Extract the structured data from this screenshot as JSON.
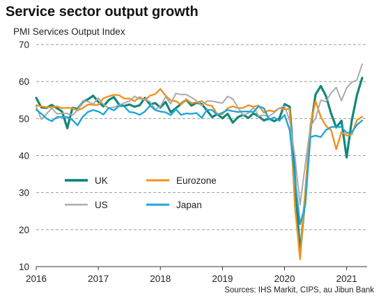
{
  "chart_data": {
    "type": "line",
    "title": "Service sector output growth",
    "ylabel": "PMI Services Output Index",
    "source": "Sources: IHS Markit, CIPS, au Jibun Bank",
    "ylim": [
      10,
      70
    ],
    "yticks": [
      10,
      20,
      30,
      40,
      50,
      60,
      70
    ],
    "xlim": [
      2016.0,
      2021.33
    ],
    "xticks": [
      {
        "value": 2016,
        "label": "2016"
      },
      {
        "value": 2017,
        "label": "2017"
      },
      {
        "value": 2018,
        "label": "2018"
      },
      {
        "value": 2019,
        "label": "2019"
      },
      {
        "value": 2020,
        "label": "2020"
      },
      {
        "value": 2021,
        "label": "2021"
      }
    ],
    "grid": "horizontal-dashed",
    "legend": "center-left",
    "series": [
      {
        "name": "UK",
        "color": "#12877a",
        "width": 3.2,
        "values": [
          55.6,
          53.0,
          52.9,
          53.7,
          52.8,
          51.9,
          47.4,
          52.9,
          52.6,
          54.5,
          55.2,
          56.2,
          54.5,
          53.3,
          55.0,
          55.8,
          53.8,
          53.4,
          53.8,
          53.2,
          53.6,
          55.6,
          53.8,
          54.2,
          53.0,
          54.5,
          51.7,
          52.8,
          54.0,
          55.1,
          53.5,
          54.3,
          53.9,
          52.2,
          50.4,
          51.2,
          50.1,
          51.3,
          48.9,
          50.4,
          51.0,
          50.2,
          51.4,
          50.6,
          49.5,
          50.0,
          49.3,
          50.0,
          53.9,
          53.2,
          34.5,
          13.4,
          29.0,
          47.1,
          56.5,
          58.8,
          56.1,
          51.4,
          47.6,
          49.4,
          39.5,
          49.5,
          56.3,
          61.0
        ]
      },
      {
        "name": "Eurozone",
        "color": "#f0921e",
        "width": 2.4,
        "values": [
          53.6,
          53.3,
          53.1,
          53.1,
          53.3,
          52.8,
          52.9,
          52.8,
          52.2,
          52.8,
          53.8,
          53.7,
          53.7,
          55.5,
          56.0,
          56.4,
          56.3,
          55.4,
          55.4,
          54.7,
          55.8,
          55.0,
          56.2,
          56.6,
          58.0,
          56.2,
          54.9,
          54.7,
          53.8,
          55.2,
          54.2,
          54.4,
          54.7,
          53.7,
          53.4,
          51.2,
          51.2,
          52.8,
          53.3,
          52.8,
          52.9,
          53.6,
          53.2,
          53.5,
          51.6,
          52.2,
          51.9,
          52.8,
          52.5,
          52.6,
          26.4,
          12.0,
          30.5,
          48.3,
          54.7,
          50.5,
          48.0,
          46.9,
          41.7,
          46.4,
          45.4,
          45.7,
          49.6,
          50.5
        ]
      },
      {
        "name": "US",
        "color": "#aaaaaa",
        "width": 2.0,
        "values": [
          53.2,
          49.8,
          51.3,
          52.8,
          51.3,
          51.4,
          51.4,
          50.9,
          52.3,
          54.8,
          54.6,
          53.9,
          55.6,
          53.8,
          52.8,
          53.1,
          53.6,
          54.2,
          54.7,
          56.0,
          55.3,
          55.3,
          54.5,
          52.5,
          53.3,
          55.9,
          54.0,
          56.8,
          56.5,
          56.5,
          55.7,
          54.8,
          53.5,
          54.7,
          54.7,
          54.4,
          54.2,
          56.0,
          55.3,
          53.0,
          50.9,
          51.5,
          53.0,
          50.7,
          50.9,
          50.6,
          51.6,
          52.8,
          53.4,
          49.4,
          39.8,
          26.7,
          37.5,
          47.9,
          50.0,
          55.0,
          54.6,
          56.9,
          58.4,
          54.8,
          58.3,
          59.8,
          60.4,
          64.7
        ]
      },
      {
        "name": "Japan",
        "color": "#1fa6d9",
        "width": 2.4,
        "values": [
          52.4,
          51.3,
          50.0,
          49.3,
          50.4,
          50.4,
          50.4,
          49.6,
          48.2,
          50.5,
          51.8,
          52.3,
          51.9,
          51.1,
          52.9,
          52.2,
          53.4,
          53.3,
          51.8,
          51.6,
          51.0,
          51.9,
          53.5,
          52.3,
          51.9,
          51.7,
          50.9,
          52.5,
          51.0,
          51.4,
          51.3,
          51.5,
          50.2,
          52.4,
          52.3,
          51.0,
          51.6,
          52.3,
          52.0,
          51.8,
          51.9,
          51.9,
          51.8,
          53.3,
          52.8,
          49.7,
          50.3,
          49.4,
          51.0,
          46.8,
          33.8,
          21.5,
          26.5,
          45.0,
          45.4,
          45.0,
          46.9,
          47.7,
          47.8,
          47.7,
          46.1,
          46.3,
          48.3,
          49.5
        ]
      }
    ]
  }
}
